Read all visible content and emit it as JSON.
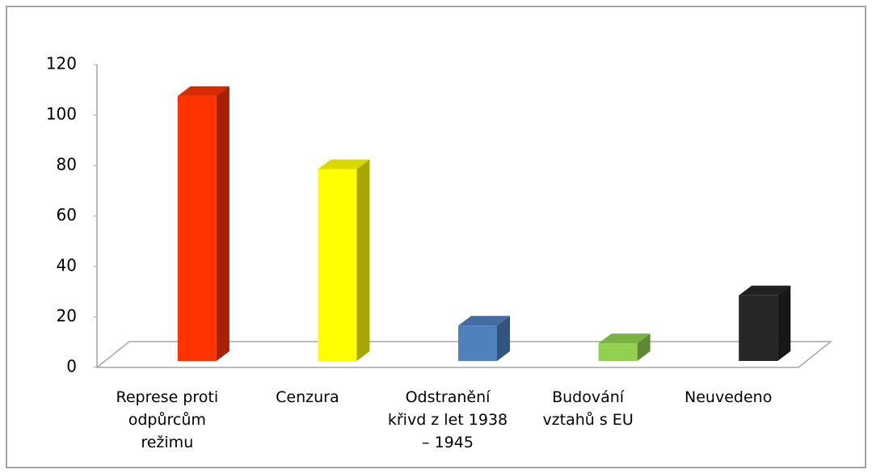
{
  "chart_data": {
    "type": "bar3d",
    "categories": [
      "Represe proti odpůrcům režimu",
      "Cenzura",
      "Odstranění křivd z let 1938 – 1945",
      "Budování vztahů s EU",
      "Neuvedeno"
    ],
    "values": [
      105,
      76,
      14,
      7,
      26
    ],
    "colors": [
      "#ff3300",
      "#ffff00",
      "#4f81bd",
      "#92d050",
      "#262626"
    ],
    "ylim": [
      0,
      120
    ],
    "yticks": [
      0,
      20,
      40,
      60,
      80,
      100,
      120
    ]
  }
}
